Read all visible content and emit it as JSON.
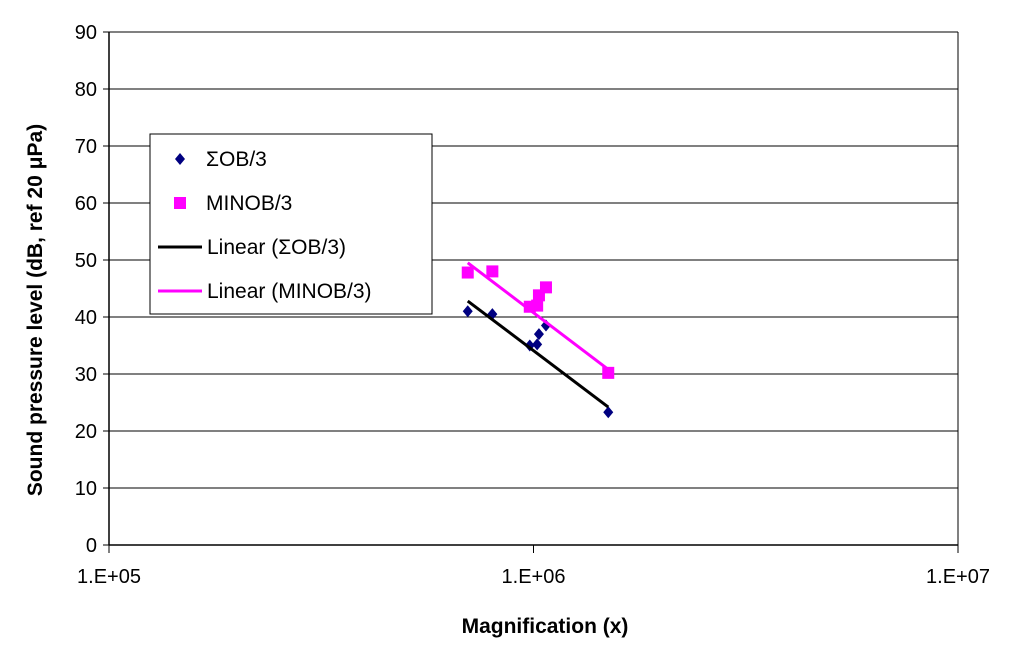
{
  "chart_data": {
    "type": "scatter",
    "xscale": "log",
    "xlabel": "Magnification (x)",
    "ylabel": "Sound pressure level (dB, ref 20 μPa)",
    "xlim": [
      100000,
      10000000
    ],
    "ylim": [
      0,
      90
    ],
    "x_ticks": [
      {
        "value": 100000,
        "label": "1.E+05"
      },
      {
        "value": 1000000,
        "label": "1.E+06"
      },
      {
        "value": 10000000,
        "label": "1.E+07"
      }
    ],
    "y_ticks": [
      0,
      10,
      20,
      30,
      40,
      50,
      60,
      70,
      80,
      90
    ],
    "grid": "horizontal",
    "legend_position": "upper-left",
    "series": [
      {
        "name": "ΣOB/3",
        "marker": "diamond",
        "color": "#000080",
        "points": [
          {
            "x": 700000,
            "y": 41.0
          },
          {
            "x": 800000,
            "y": 40.5
          },
          {
            "x": 980000,
            "y": 35.0
          },
          {
            "x": 1020000,
            "y": 35.2
          },
          {
            "x": 1030000,
            "y": 37.0
          },
          {
            "x": 1070000,
            "y": 38.5
          },
          {
            "x": 1500000,
            "y": 23.3
          }
        ]
      },
      {
        "name": "MINOB/3",
        "marker": "square",
        "color": "#ff00ff",
        "points": [
          {
            "x": 700000,
            "y": 47.8
          },
          {
            "x": 800000,
            "y": 48.0
          },
          {
            "x": 980000,
            "y": 41.8
          },
          {
            "x": 1020000,
            "y": 42.0
          },
          {
            "x": 1030000,
            "y": 43.8
          },
          {
            "x": 1070000,
            "y": 45.2
          },
          {
            "x": 1500000,
            "y": 30.2
          }
        ]
      },
      {
        "name": "Linear (ΣOB/3)",
        "type": "line",
        "color": "#000000",
        "points": [
          {
            "x": 700000,
            "y": 42.8
          },
          {
            "x": 1500000,
            "y": 24.2
          }
        ]
      },
      {
        "name": "Linear (MINOB/3)",
        "type": "line",
        "color": "#ff00ff",
        "points": [
          {
            "x": 700000,
            "y": 49.5
          },
          {
            "x": 1500000,
            "y": 30.8
          }
        ]
      }
    ]
  }
}
